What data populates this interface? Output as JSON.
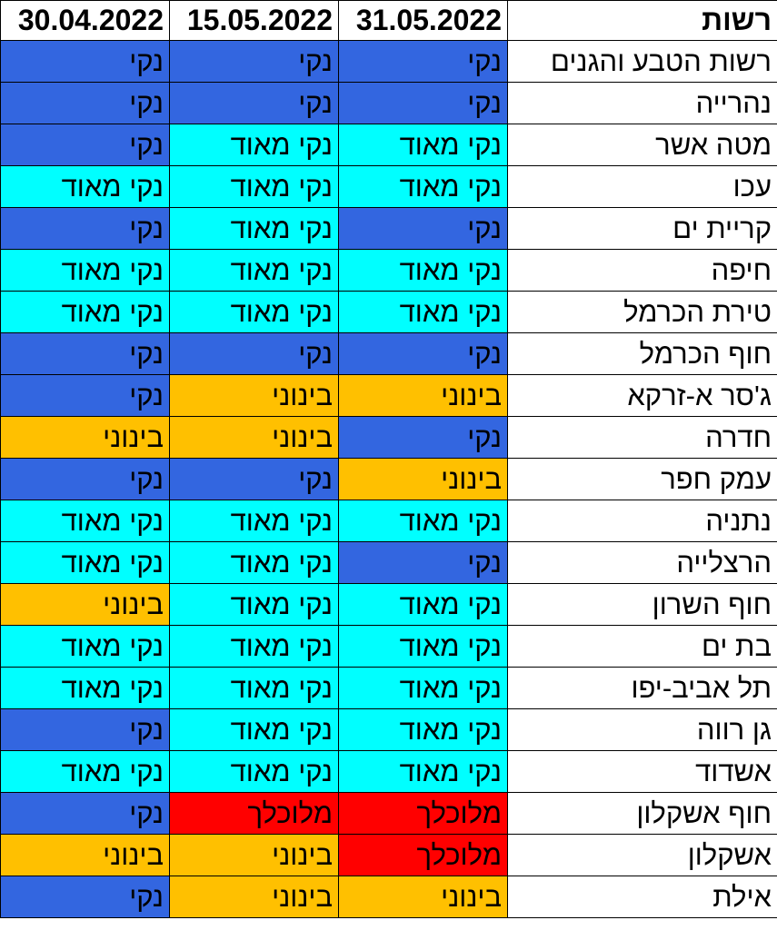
{
  "table": {
    "headers": [
      "30.04.2022",
      "15.05.2022",
      "31.05.2022",
      "רשות"
    ],
    "status_colors": {
      "נקי": "#3366e0",
      "נקי מאוד": "#00ffff",
      "בינוני": "#ffc000",
      "מלוכלך": "#ff0000"
    },
    "rows": [
      {
        "authority": "רשות הטבע והגנים",
        "values": [
          "נקי",
          "נקי",
          "נקי"
        ]
      },
      {
        "authority": "נהרייה",
        "values": [
          "נקי",
          "נקי",
          "נקי"
        ]
      },
      {
        "authority": "מטה אשר",
        "values": [
          "נקי",
          "נקי מאוד",
          "נקי מאוד"
        ]
      },
      {
        "authority": "עכו",
        "values": [
          "נקי מאוד",
          "נקי מאוד",
          "נקי מאוד"
        ]
      },
      {
        "authority": "קריית ים",
        "values": [
          "נקי",
          "נקי מאוד",
          "נקי"
        ]
      },
      {
        "authority": "חיפה",
        "values": [
          "נקי מאוד",
          "נקי מאוד",
          "נקי מאוד"
        ]
      },
      {
        "authority": "טירת הכרמל",
        "values": [
          "נקי מאוד",
          "נקי מאוד",
          "נקי מאוד"
        ]
      },
      {
        "authority": "חוף הכרמל",
        "values": [
          "נקי",
          "נקי",
          "נקי"
        ]
      },
      {
        "authority": "ג'סר א-זרקא",
        "values": [
          "נקי",
          "בינוני",
          "בינוני"
        ]
      },
      {
        "authority": "חדרה",
        "values": [
          "בינוני",
          "בינוני",
          "נקי"
        ]
      },
      {
        "authority": "עמק חפר",
        "values": [
          "נקי",
          "נקי",
          "בינוני"
        ]
      },
      {
        "authority": "נתניה",
        "values": [
          "נקי מאוד",
          "נקי מאוד",
          "נקי מאוד"
        ]
      },
      {
        "authority": "הרצלייה",
        "values": [
          "נקי מאוד",
          "נקי מאוד",
          "נקי"
        ]
      },
      {
        "authority": "חוף השרון",
        "values": [
          "בינוני",
          "נקי מאוד",
          "נקי מאוד"
        ]
      },
      {
        "authority": "בת ים",
        "values": [
          "נקי מאוד",
          "נקי מאוד",
          "נקי מאוד"
        ]
      },
      {
        "authority": "תל אביב-יפו",
        "values": [
          "נקי מאוד",
          "נקי מאוד",
          "נקי מאוד"
        ]
      },
      {
        "authority": "גן רווה",
        "values": [
          "נקי",
          "נקי מאוד",
          "נקי מאוד"
        ]
      },
      {
        "authority": "אשדוד",
        "values": [
          "נקי מאוד",
          "נקי מאוד",
          "נקי מאוד"
        ]
      },
      {
        "authority": "חוף אשקלון",
        "values": [
          "נקי",
          "מלוכלך",
          "מלוכלך"
        ]
      },
      {
        "authority": "אשקלון",
        "values": [
          "בינוני",
          "בינוני",
          "מלוכלך"
        ]
      },
      {
        "authority": "אילת",
        "values": [
          "נקי",
          "בינוני",
          "בינוני"
        ]
      }
    ]
  }
}
